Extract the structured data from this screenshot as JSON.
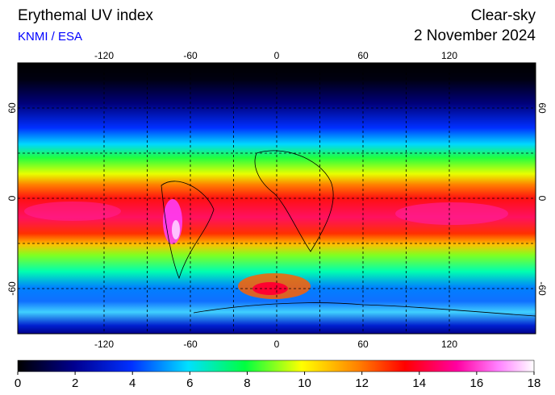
{
  "header": {
    "title": "Erythemal UV index",
    "source": "KNMI / ESA",
    "condition": "Clear-sky",
    "date": "2 November 2024"
  },
  "map": {
    "lonlim": [
      -180,
      180
    ],
    "latlim": [
      -90,
      90
    ],
    "lon_ticks": [
      -120,
      -60,
      0,
      60,
      120
    ],
    "lat_ticks": [
      60,
      0,
      -60
    ]
  },
  "colorbar": {
    "lim": [
      0,
      18
    ],
    "ticks": [
      0,
      2,
      4,
      6,
      8,
      10,
      12,
      14,
      16,
      18
    ]
  }
}
